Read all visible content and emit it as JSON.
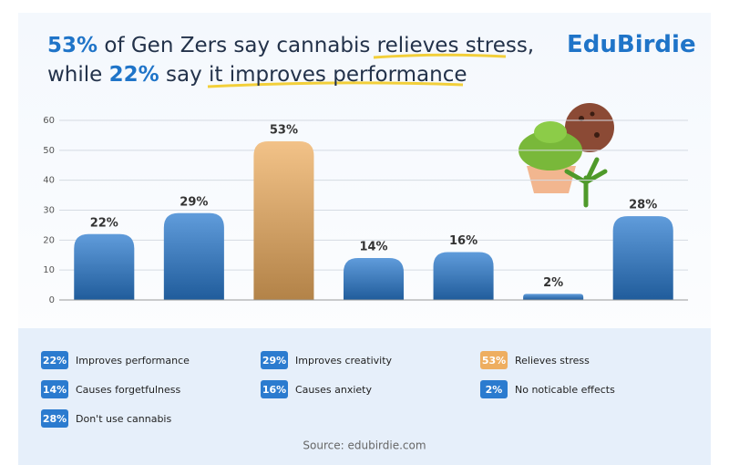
{
  "chart_data": {
    "type": "bar",
    "title_lines": [
      [
        "53%",
        "of Gen Zers say cannabis",
        "relieves stress,"
      ],
      [
        "while",
        "22%",
        "say it",
        "improves performance"
      ]
    ],
    "brand": "EduBirdie",
    "categories": [
      "Improves performance",
      "Improves creativity",
      "Relieves stress",
      "Causes forgetfulness",
      "Causes anxiety",
      "No noticable effects",
      "Don't use cannabis"
    ],
    "values": [
      22,
      29,
      53,
      14,
      16,
      2,
      28
    ],
    "value_labels": [
      "22%",
      "29%",
      "53%",
      "14%",
      "16%",
      "2%",
      "28%"
    ],
    "colors": [
      "#2b7bcf",
      "#2b7bcf",
      "#eeae60",
      "#2b7bcf",
      "#2b7bcf",
      "#2b7bcf",
      "#2b7bcf"
    ],
    "ylim": [
      0,
      60
    ],
    "yticks": [
      0,
      10,
      20,
      30,
      40,
      50,
      60
    ],
    "grid": true,
    "source": "Source: edubirdie.com"
  }
}
